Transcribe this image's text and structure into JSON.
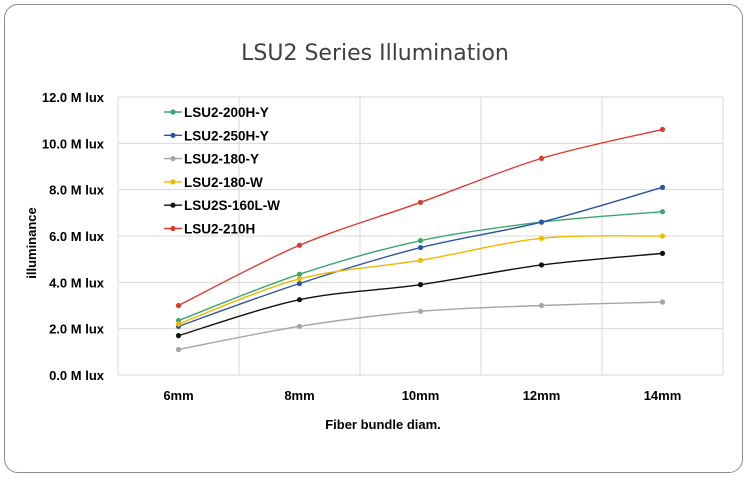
{
  "chart_data": {
    "type": "line",
    "title": "LSU2 Series Illumination",
    "xlabel": "Fiber bundle diam.",
    "ylabel": "illuminance",
    "categories": [
      "6mm",
      "8mm",
      "10mm",
      "12mm",
      "14mm"
    ],
    "yticks": [
      "0.0 M lux",
      "2.0 M lux",
      "4.0 M lux",
      "6.0 M lux",
      "8.0 M lux",
      "10.0 M lux",
      "12.0 M lux"
    ],
    "ylim": [
      0,
      12
    ],
    "grid": true,
    "legend_position": "top-left",
    "series": [
      {
        "name": "LSU2-200H-Y",
        "color": "#3aa66e",
        "values": [
          2.35,
          4.35,
          5.8,
          6.6,
          7.05
        ]
      },
      {
        "name": "LSU2-250H-Y",
        "color": "#2a55a3",
        "values": [
          2.1,
          3.95,
          5.5,
          6.6,
          8.1
        ]
      },
      {
        "name": "LSU2-180-Y",
        "color": "#a5a5a5",
        "values": [
          1.1,
          2.1,
          2.75,
          3.0,
          3.15
        ]
      },
      {
        "name": "LSU2-180-W",
        "color": "#f2b800",
        "values": [
          2.2,
          4.15,
          4.95,
          5.9,
          6.0
        ]
      },
      {
        "name": "LSU2S-160L-W",
        "color": "#111111",
        "values": [
          1.7,
          3.25,
          3.9,
          4.75,
          5.25
        ]
      },
      {
        "name": "LSU2-210H",
        "color": "#e03a30",
        "values": [
          3.0,
          5.6,
          7.45,
          9.35,
          10.6
        ]
      }
    ]
  }
}
